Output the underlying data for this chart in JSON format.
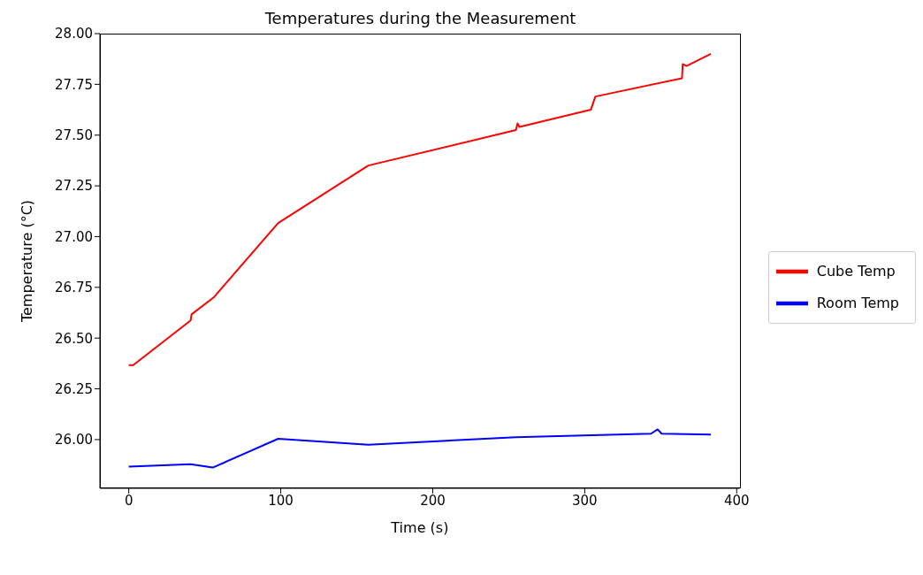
{
  "chart_data": {
    "type": "line",
    "title": "Temperatures during the Measurement",
    "xlabel": "Time (s)",
    "ylabel": "Temperature (°C)",
    "series": [
      {
        "name": "Cube Temp",
        "color": "#ff0000",
        "x": [
          0,
          2.9,
          40.7,
          41.3,
          55.8,
          98.3,
          157.6,
          254.7,
          255.8,
          257,
          304,
          307,
          364,
          364.5,
          367,
          383
        ],
        "values": [
          26.367,
          26.367,
          26.587,
          26.617,
          26.7,
          27.067,
          27.35,
          27.525,
          27.558,
          27.54,
          27.625,
          27.69,
          27.78,
          27.85,
          27.84,
          27.9
        ]
      },
      {
        "name": "Room Temp",
        "color": "#0000ff",
        "x": [
          0,
          40.7,
          55.2,
          98.3,
          157.6,
          254.7,
          343.6,
          348,
          350.6,
          383
        ],
        "values": [
          25.867,
          25.879,
          25.862,
          26.004,
          25.975,
          26.012,
          26.029,
          26.05,
          26.029,
          26.025
        ]
      }
    ],
    "xlim": [
      -19,
      402
    ],
    "xticks": [
      0,
      100,
      200,
      300,
      400
    ],
    "ylim": [
      25.76,
      28.0
    ],
    "yticks": [
      {
        "value": 26,
        "label": "26.00"
      },
      {
        "value": 26.25,
        "label": "26.25"
      },
      {
        "value": 26.5,
        "label": "26.50"
      },
      {
        "value": 26.75,
        "label": "26.75"
      },
      {
        "value": 27,
        "label": "27.00"
      },
      {
        "value": 27.25,
        "label": "27.25"
      },
      {
        "value": 27.5,
        "label": "27.50"
      },
      {
        "value": 27.75,
        "label": "27.75"
      },
      {
        "value": 28,
        "label": "28.00"
      }
    ],
    "legend": "right",
    "grid": false,
    "marker": "none",
    "line_style": "solid"
  }
}
